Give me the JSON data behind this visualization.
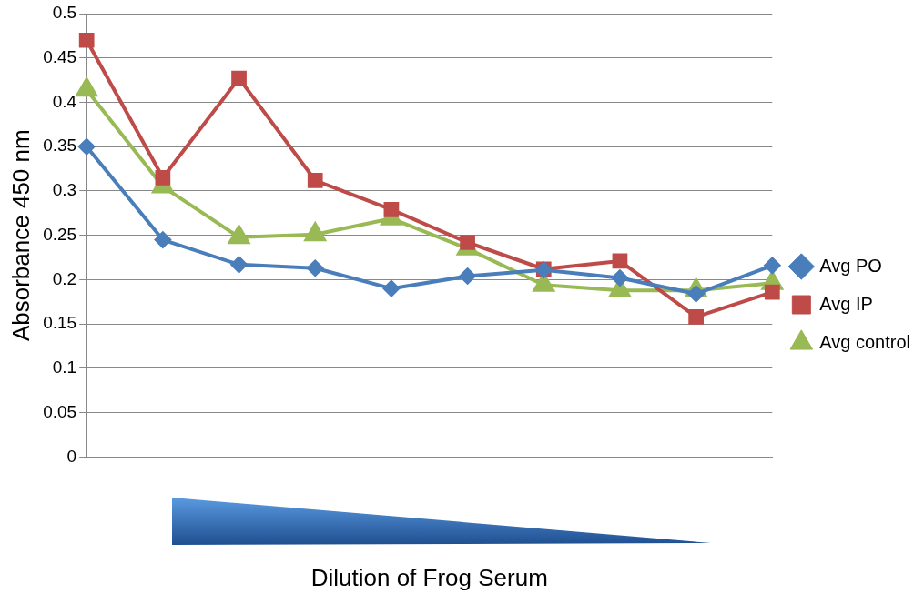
{
  "chart_data": {
    "type": "line",
    "xlabel": "Dilution of Frog Serum",
    "ylabel": "Absorbance 450 nm",
    "categories": [
      null,
      null,
      null,
      null,
      null,
      null,
      null,
      null,
      null,
      null
    ],
    "ylim": [
      0,
      0.5
    ],
    "yticks": [
      0,
      0.05,
      0.1,
      0.15,
      0.2,
      0.25,
      0.3,
      0.35,
      0.4,
      0.45,
      0.5
    ],
    "grid": "y",
    "legend": "right",
    "line_style": "solid",
    "series": [
      {
        "name": "Avg PO",
        "color": "#4a7ebb",
        "marker": "diamond",
        "values": [
          0.35,
          0.245,
          0.217,
          0.213,
          0.19,
          0.204,
          0.211,
          0.202,
          0.184,
          0.216
        ]
      },
      {
        "name": "Avg IP",
        "color": "#be4b48",
        "marker": "square",
        "values": [
          0.47,
          0.315,
          0.427,
          0.312,
          0.279,
          0.242,
          0.212,
          0.221,
          0.158,
          0.186
        ]
      },
      {
        "name": "Avg control",
        "color": "#98b954",
        "marker": "triangle",
        "values": [
          0.414,
          0.305,
          0.248,
          0.251,
          0.269,
          0.235,
          0.194,
          0.188,
          0.188,
          0.196
        ]
      }
    ]
  }
}
